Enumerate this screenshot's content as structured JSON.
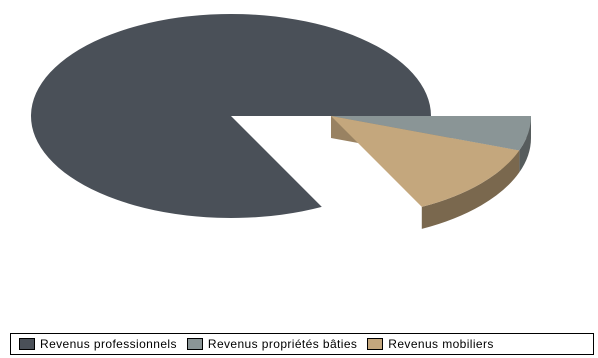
{
  "chart_data": {
    "type": "pie",
    "style": "3d-exploded",
    "title": "",
    "categories": [
      "Revenus professionnels",
      "Revenus propriétés bâties",
      "Revenus mobiliers"
    ],
    "values": [
      82.5,
      5.5,
      12.0
    ],
    "colors": [
      "#4a5058",
      "#8a9596",
      "#c4a77d"
    ],
    "legend_placement": "bottom"
  }
}
